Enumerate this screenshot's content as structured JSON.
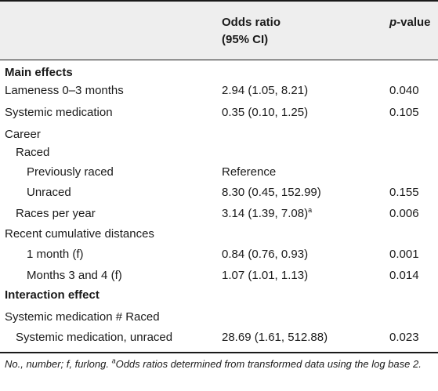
{
  "header": {
    "col2": "Odds ratio",
    "col2_sub": "(95% CI)",
    "col3_prefix": "p",
    "col3_suffix": "-value"
  },
  "rows": [
    {
      "label": "Main effects",
      "or": "",
      "p": "",
      "section": true
    },
    {
      "label": "Lameness 0–3 months",
      "or": "2.94 (1.05, 8.21)",
      "p": "0.040"
    },
    {
      "label": "Systemic medication",
      "or": "0.35 (0.10, 1.25)",
      "p": "0.105"
    },
    {
      "label": "Career",
      "or": "",
      "p": ""
    },
    {
      "label": "Raced",
      "or": "",
      "p": ""
    },
    {
      "label": "Previously raced",
      "or": "Reference",
      "p": ""
    },
    {
      "label": "Unraced",
      "or": "8.30 (0.45, 152.99)",
      "p": "0.155"
    },
    {
      "label": "Races per year",
      "or": "3.14 (1.39, 7.08)",
      "or_sup": "a",
      "p": "0.006"
    },
    {
      "label": "Recent cumulative distances",
      "or": "",
      "p": ""
    },
    {
      "label": "1 month (f)",
      "or": "0.84 (0.76, 0.93)",
      "p": "0.001"
    },
    {
      "label": "Months 3 and 4 (f)",
      "or": "1.07 (1.01, 1.13)",
      "p": "0.014"
    },
    {
      "label": "Interaction effect",
      "or": "",
      "p": "",
      "section": true
    },
    {
      "label": "Systemic medication # Raced",
      "or": "",
      "p": ""
    },
    {
      "label": "Systemic medication, unraced",
      "or": "28.69 (1.61, 512.88)",
      "p": "0.023"
    }
  ],
  "footnote": {
    "text_before": "No., number; f, furlong. ",
    "sup": "a",
    "text_after": "Odds ratios determined from transformed data using the log base 2."
  }
}
